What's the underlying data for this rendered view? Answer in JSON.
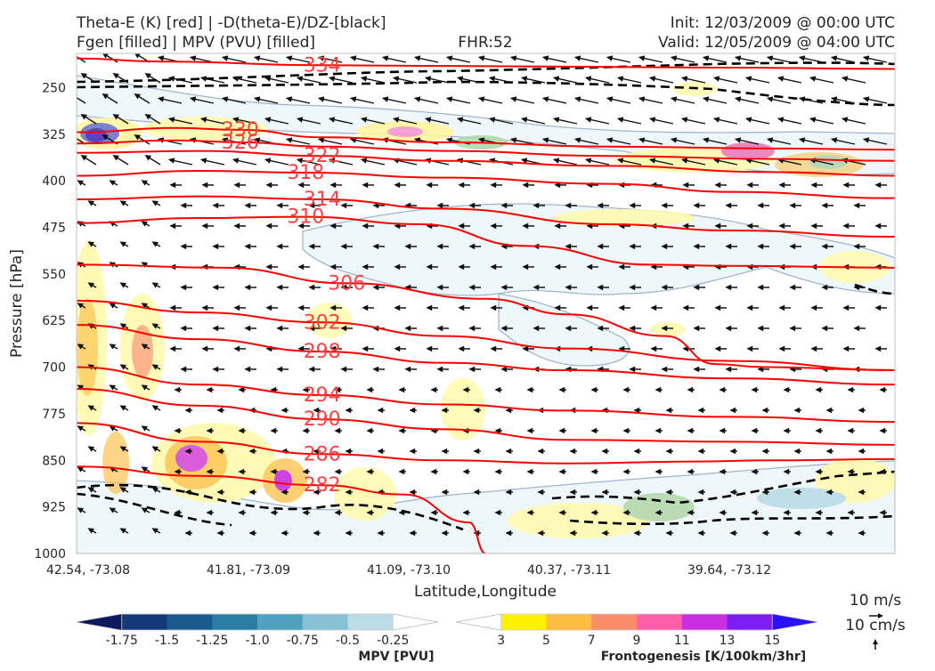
{
  "titles": {
    "left1": "Theta-E (K) [red] | -D(theta-E)/DZ-[black]",
    "left2": "Fgen [filled] | MPV (PVU) [filled]",
    "center": "FHR:52",
    "right1": "Init: 12/03/2009 @ 00:00 UTC",
    "right2": "Valid: 12/05/2009 @ 04:00 UTC"
  },
  "chart_data": {
    "type": "cross-section",
    "xlabel": "Latitude,Longitude",
    "ylabel": "Pressure [hPa]",
    "x_ticks": [
      "42.54, -73.08",
      "41.81, -73.09",
      "41.09, -73.10",
      "40.37, -73.11",
      "39.64, -73.12"
    ],
    "y_ticks": [
      250,
      325,
      400,
      475,
      550,
      625,
      700,
      775,
      850,
      925,
      1000
    ],
    "ylim": [
      1000,
      195
    ],
    "theta_e_contours": [
      {
        "label": "334",
        "pts": [
          [
            0,
            203
          ],
          [
            0.1,
            208
          ],
          [
            0.3,
            214
          ],
          [
            0.55,
            216
          ],
          [
            0.8,
            218
          ],
          [
            1,
            220
          ]
        ]
      },
      {
        "label": "330",
        "pts": [
          [
            0,
            322
          ],
          [
            0.12,
            315
          ],
          [
            0.2,
            318
          ],
          [
            0.3,
            330
          ],
          [
            0.45,
            338
          ],
          [
            0.65,
            345
          ],
          [
            0.85,
            348
          ],
          [
            1,
            350
          ]
        ]
      },
      {
        "label": "326",
        "pts": [
          [
            0,
            340
          ],
          [
            0.12,
            335
          ],
          [
            0.2,
            338
          ],
          [
            0.3,
            345
          ],
          [
            0.45,
            352
          ],
          [
            0.65,
            360
          ],
          [
            0.85,
            365
          ],
          [
            1,
            368
          ]
        ]
      },
      {
        "label": "322",
        "pts": [
          [
            0,
            355
          ],
          [
            0.15,
            352
          ],
          [
            0.3,
            360
          ],
          [
            0.45,
            368
          ],
          [
            0.65,
            376
          ],
          [
            0.85,
            386
          ],
          [
            1,
            392
          ]
        ]
      },
      {
        "label": "318",
        "pts": [
          [
            0,
            392
          ],
          [
            0.15,
            384
          ],
          [
            0.28,
            387
          ],
          [
            0.45,
            395
          ],
          [
            0.65,
            405
          ],
          [
            0.8,
            418
          ],
          [
            1,
            428
          ]
        ]
      },
      {
        "label": "310",
        "pts": [
          [
            0,
            468
          ],
          [
            0.15,
            460
          ],
          [
            0.28,
            458
          ],
          [
            0.42,
            470
          ],
          [
            0.55,
            505
          ],
          [
            0.7,
            535
          ],
          [
            0.8,
            537
          ],
          [
            1,
            540
          ]
        ]
      },
      {
        "label": "314",
        "pts": [
          [
            0,
            430
          ],
          [
            0.15,
            425
          ],
          [
            0.3,
            430
          ],
          [
            0.45,
            445
          ],
          [
            0.65,
            470
          ],
          [
            0.8,
            480
          ],
          [
            1,
            490
          ]
        ]
      },
      {
        "label": "306",
        "pts": [
          [
            0,
            535
          ],
          [
            0.18,
            540
          ],
          [
            0.33,
            565
          ],
          [
            0.5,
            590
          ],
          [
            0.6,
            615
          ],
          [
            0.72,
            650
          ],
          [
            0.78,
            695
          ],
          [
            0.84,
            700
          ],
          [
            1,
            705
          ]
        ]
      },
      {
        "label": "302",
        "pts": [
          [
            0,
            593
          ],
          [
            0.15,
            612
          ],
          [
            0.3,
            628
          ],
          [
            0.45,
            650
          ],
          [
            0.6,
            670
          ],
          [
            0.8,
            690
          ],
          [
            1,
            705
          ]
        ]
      },
      {
        "label": "298",
        "pts": [
          [
            0,
            632
          ],
          [
            0.15,
            655
          ],
          [
            0.3,
            675
          ],
          [
            0.45,
            693
          ],
          [
            0.6,
            705
          ],
          [
            0.8,
            718
          ],
          [
            1,
            728
          ]
        ]
      },
      {
        "label": "294",
        "pts": [
          [
            0,
            700
          ],
          [
            0.15,
            728
          ],
          [
            0.3,
            745
          ],
          [
            0.45,
            760
          ],
          [
            0.6,
            770
          ],
          [
            0.8,
            780
          ],
          [
            1,
            788
          ]
        ]
      },
      {
        "label": "290",
        "pts": [
          [
            0,
            735
          ],
          [
            0.15,
            762
          ],
          [
            0.3,
            784
          ],
          [
            0.45,
            800
          ],
          [
            0.6,
            817
          ],
          [
            0.8,
            820
          ],
          [
            1,
            825
          ]
        ]
      },
      {
        "label": "286",
        "pts": [
          [
            0,
            790
          ],
          [
            0.15,
            820
          ],
          [
            0.3,
            840
          ],
          [
            0.45,
            850
          ],
          [
            0.6,
            855
          ],
          [
            0.75,
            852
          ],
          [
            0.85,
            850
          ],
          [
            1,
            848
          ]
        ]
      },
      {
        "label": "282",
        "pts": [
          [
            0,
            860
          ],
          [
            0.15,
            875
          ],
          [
            0.3,
            890
          ],
          [
            0.4,
            905
          ],
          [
            0.48,
            950
          ],
          [
            0.5,
            1000
          ]
        ]
      }
    ],
    "colorbars": [
      {
        "label": "MPV [PVU]",
        "ticks": [
          "-1.75",
          "-1.5",
          "-1.25",
          "-1.0",
          "-0.75",
          "-0.5",
          "-0.25"
        ],
        "colors": [
          "#0b1a5c",
          "#123a78",
          "#1a5a8e",
          "#2a7ea4",
          "#4ea2bf",
          "#86c1d6",
          "#bcdce6",
          "#ffffff"
        ]
      },
      {
        "label": "Frontogenesis [K/100km/3hr]",
        "ticks": [
          "3",
          "5",
          "7",
          "9",
          "11",
          "13",
          "15"
        ],
        "colors": [
          "#ffffff",
          "#fff200",
          "#fdbd40",
          "#fb8c6a",
          "#fc5eaa",
          "#c92ee0",
          "#7a1ef2",
          "#2a10f5"
        ]
      }
    ],
    "vector_key": {
      "label1": "10 m/s",
      "label2": "10 cm/s"
    }
  }
}
